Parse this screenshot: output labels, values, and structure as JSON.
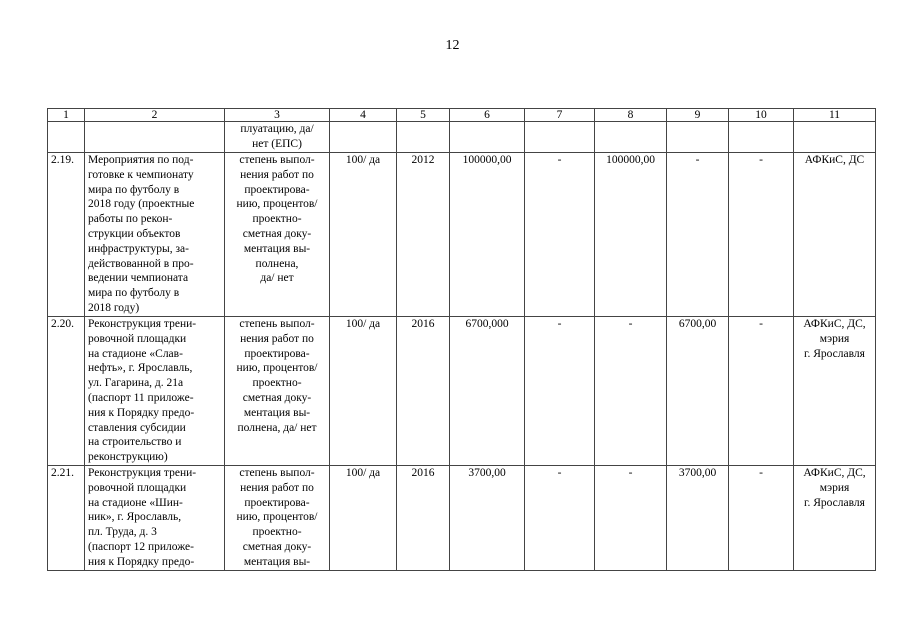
{
  "page_number": "12",
  "table": {
    "headers": [
      "1",
      "2",
      "3",
      "4",
      "5",
      "6",
      "7",
      "8",
      "9",
      "10",
      "11"
    ],
    "rows": [
      [
        "",
        "",
        "плуатацию, да/\nнет (ЕПС)",
        "",
        "",
        "",
        "",
        "",
        "",
        "",
        ""
      ],
      [
        "2.19.",
        "Мероприятия по под-\nготовке к чемпионату\nмира по футболу в\n2018 году (проектные\nработы по  рекон-\nструкции объектов\nинфраструктуры, за-\nдействованной в про-\nведении чемпионата\nмира по футболу в\n2018 году)",
        "степень выпол-\nнения работ по\nпроектирова-\nнию, процентов/\nпроектно-\nсметная доку-\nментация вы-\nполнена,\nда/ нет",
        "100/ да",
        "2012",
        "100000,00",
        "-",
        "100000,00",
        "-",
        "-",
        "АФКиС, ДС"
      ],
      [
        "2.20.",
        "Реконструкция трени-\nровочной площадки\nна стадионе «Слав-\nнефть», г. Ярославль,\nул. Гагарина, д. 21а\n(паспорт 11 приложе-\nния к Порядку предо-\nставления субсидии\nна строительство и\nреконструкцию)",
        "степень выпол-\nнения работ по\nпроектирова-\nнию, процентов/\nпроектно-\nсметная доку-\nментация вы-\nполнена, да/ нет",
        "100/ да",
        "2016",
        "6700,000",
        "-",
        "-",
        "6700,00",
        "-",
        "АФКиС, ДС,\nмэрия\nг. Ярославля"
      ],
      [
        "2.21.",
        "Реконструкция трени-\nровочной площадки\nна стадионе «Шин-\nник», г. Ярославль,\nпл. Труда, д. 3\n(паспорт 12 приложе-\nния к Порядку предо-",
        "степень выпол-\nнения работ по\nпроектирова-\nнию, процентов/\nпроектно-\nсметная доку-\nментация вы-",
        "100/ да",
        "2016",
        "3700,00",
        "-",
        "-",
        "3700,00",
        "-",
        "АФКиС, ДС,\nмэрия\nг. Ярославля"
      ]
    ]
  }
}
